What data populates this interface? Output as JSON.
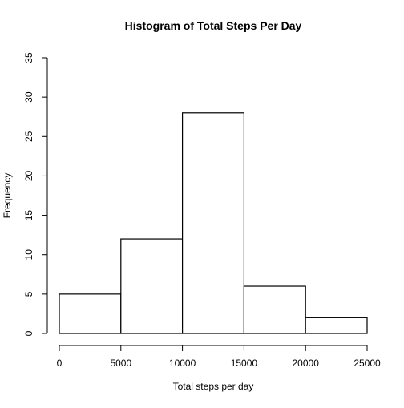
{
  "chart_data": {
    "type": "bar",
    "title": "Histogram of Total Steps Per Day",
    "xlabel": "Total steps per day",
    "ylabel": "Frequency",
    "bins": [
      {
        "start": 0,
        "end": 5000,
        "count": 5
      },
      {
        "start": 5000,
        "end": 10000,
        "count": 12
      },
      {
        "start": 10000,
        "end": 15000,
        "count": 28
      },
      {
        "start": 15000,
        "end": 20000,
        "count": 6
      },
      {
        "start": 20000,
        "end": 25000,
        "count": 2
      }
    ],
    "xlim": [
      0,
      25000
    ],
    "ylim": [
      0,
      35
    ],
    "xticks": [
      "0",
      "5000",
      "10000",
      "15000",
      "20000",
      "25000"
    ],
    "yticks": [
      "0",
      "5",
      "10",
      "15",
      "20",
      "25",
      "30",
      "35"
    ],
    "grid": false,
    "colors": {
      "bar_fill": "#ffffff",
      "bar_stroke": "#000000"
    }
  }
}
